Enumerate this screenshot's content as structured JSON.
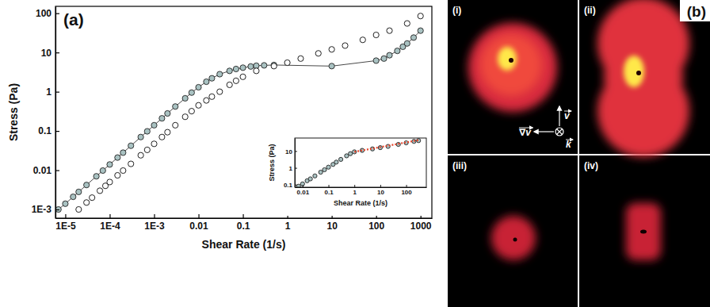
{
  "chart_data": [
    {
      "type": "scatter",
      "title": "(a)",
      "x_label": "Shear Rate (1/s)",
      "y_label": "Stress (Pa)",
      "log": true,
      "xlim": [
        6e-06,
        1800
      ],
      "ylim": [
        0.0006,
        150
      ],
      "xticks": [
        {
          "value": 1e-05,
          "label": "1E-5"
        },
        {
          "value": 0.0001,
          "label": "1E-4"
        },
        {
          "value": 0.001,
          "label": "1E-3"
        },
        0.01,
        0.1,
        1,
        10,
        100,
        1000
      ],
      "yticks": [
        {
          "value": 0.001,
          "label": "1E-3"
        },
        0.01,
        0.1,
        1,
        10,
        100
      ],
      "series": [
        {
          "color": "#a9c2c2",
          "marker": "circle",
          "line_style": "solid",
          "x": [
            7e-06,
            1e-05,
            1.5e-05,
            2e-05,
            3e-05,
            5e-05,
            7e-05,
            0.0001,
            0.00015,
            0.0002,
            0.0003,
            0.0005,
            0.0007,
            0.001,
            0.0015,
            0.002,
            0.003,
            0.005,
            0.007,
            0.01,
            0.015,
            0.02,
            0.03,
            0.05,
            0.07,
            0.1,
            0.15,
            0.2,
            0.3,
            0.5,
            10,
            100,
            150,
            200,
            300,
            400,
            500,
            700,
            1000
          ],
          "values": [
            0.001,
            0.0014,
            0.0021,
            0.0028,
            0.0042,
            0.007,
            0.0098,
            0.014,
            0.021,
            0.028,
            0.042,
            0.07,
            0.098,
            0.14,
            0.21,
            0.28,
            0.42,
            0.68,
            0.95,
            1.3,
            1.8,
            2.2,
            2.8,
            3.4,
            3.8,
            4.1,
            4.4,
            4.6,
            4.7,
            4.8,
            4.5,
            6.2,
            7,
            8.5,
            11,
            14,
            17,
            24,
            36
          ]
        },
        {
          "color": "#ffffff",
          "marker": "open_circle",
          "x": [
            2e-05,
            3e-05,
            4e-05,
            6e-05,
            8e-05,
            0.0001,
            0.00015,
            0.0002,
            0.0003,
            0.0005,
            0.0007,
            0.001,
            0.0015,
            0.002,
            0.003,
            0.005,
            0.007,
            0.01,
            0.015,
            0.02,
            0.03,
            0.05,
            0.07,
            0.1,
            0.2,
            0.5,
            1,
            2,
            5,
            10,
            20,
            50,
            100,
            200,
            500,
            1000
          ],
          "values": [
            0.001,
            0.0015,
            0.002,
            0.003,
            0.004,
            0.005,
            0.0074,
            0.0098,
            0.0145,
            0.024,
            0.033,
            0.047,
            0.07,
            0.093,
            0.14,
            0.23,
            0.32,
            0.45,
            0.6,
            0.75,
            1,
            1.5,
            1.9,
            2.4,
            3.4,
            4.5,
            5.5,
            7,
            9.5,
            12,
            15,
            21,
            28,
            36,
            55,
            85
          ]
        }
      ]
    },
    {
      "type": "scatter",
      "x_label": "Shear Rate (1/s)",
      "y_label": "Stress (Pa)",
      "log": true,
      "xlim": [
        0.005,
        600
      ],
      "ylim": [
        0.07,
        60
      ],
      "xticks": [
        0.01,
        0.1,
        1,
        10,
        100
      ],
      "yticks": [
        0.1,
        1,
        10
      ],
      "series": [
        {
          "color": "#a9c2c2",
          "marker": "circle",
          "x": [
            0.007,
            0.01,
            0.015,
            0.02,
            0.03,
            0.05,
            0.07,
            0.1,
            0.15,
            0.2,
            0.3,
            0.5,
            0.7,
            1,
            2,
            5,
            10,
            20,
            50,
            100,
            200,
            300
          ],
          "values": [
            0.08,
            0.11,
            0.17,
            0.22,
            0.33,
            0.55,
            0.77,
            1.1,
            1.6,
            2.2,
            3.2,
            5.2,
            7,
            9,
            11,
            13.5,
            16,
            19,
            25,
            31,
            38,
            42
          ]
        },
        {
          "type": "line",
          "color": "#e8452c",
          "line_style": "dotted",
          "x": [
            1,
            300
          ],
          "values": [
            9,
            45
          ]
        }
      ]
    }
  ],
  "panel_b": {
    "letter": "(b)",
    "image_labels": [
      "(i)",
      "(ii)",
      "(iii)",
      "(iv)"
    ],
    "direction_labels": [
      "v",
      "∇v",
      "k"
    ]
  }
}
